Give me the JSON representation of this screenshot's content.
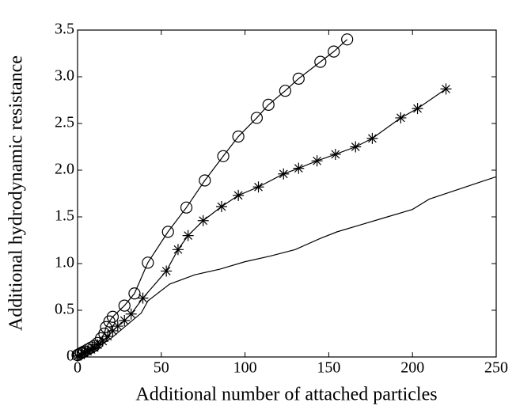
{
  "chart_data": {
    "type": "line",
    "xlabel": "Additional number of attached particles",
    "ylabel": "Additional hydrodynamic resistance",
    "xlim": [
      0,
      250
    ],
    "xticks": [
      0,
      50,
      100,
      150,
      200,
      250
    ],
    "ylim": [
      0,
      3.5
    ],
    "yticks": [
      0,
      0.5,
      {
        "value": 1,
        "label": "1.0"
      },
      1.5,
      {
        "value": 2,
        "label": "2.0"
      },
      2.5,
      {
        "value": 3,
        "label": "3.0"
      },
      3.5
    ],
    "grid": false,
    "series": [
      {
        "color": "#000000",
        "marker": "circle",
        "x": [
          0,
          1,
          2,
          3,
          4,
          6,
          8,
          10,
          12,
          14,
          16,
          17,
          19,
          21,
          28,
          34,
          42,
          54,
          65,
          76,
          87,
          96,
          107,
          114,
          124,
          132,
          145,
          153,
          161
        ],
        "values": [
          0.02,
          0.03,
          0.04,
          0.05,
          0.06,
          0.08,
          0.1,
          0.12,
          0.15,
          0.2,
          0.25,
          0.32,
          0.38,
          0.43,
          0.55,
          0.68,
          1.01,
          1.34,
          1.6,
          1.89,
          2.15,
          2.36,
          2.56,
          2.7,
          2.85,
          2.98,
          3.16,
          3.27,
          3.4
        ]
      },
      {
        "color": "#000000",
        "marker": "star",
        "x": [
          0,
          2,
          4,
          6,
          8,
          10,
          12,
          15,
          18,
          21,
          24,
          28,
          32,
          39,
          53,
          60,
          66,
          75,
          86,
          96,
          108,
          123,
          132,
          143,
          154,
          166,
          176,
          193,
          203,
          220
        ],
        "values": [
          0.01,
          0.02,
          0.04,
          0.06,
          0.08,
          0.1,
          0.13,
          0.17,
          0.22,
          0.28,
          0.33,
          0.39,
          0.46,
          0.63,
          0.92,
          1.15,
          1.3,
          1.46,
          1.61,
          1.73,
          1.82,
          1.96,
          2.02,
          2.1,
          2.17,
          2.25,
          2.34,
          2.56,
          2.66,
          2.87
        ]
      },
      {
        "color": "#000000",
        "marker": "none",
        "x": [
          0,
          10,
          20,
          30,
          38,
          42,
          55,
          70,
          85,
          100,
          115,
          130,
          145,
          155,
          170,
          185,
          200,
          210,
          225,
          240,
          250
        ],
        "values": [
          0,
          0.08,
          0.2,
          0.35,
          0.47,
          0.6,
          0.78,
          0.88,
          0.94,
          1.02,
          1.08,
          1.15,
          1.27,
          1.34,
          1.42,
          1.5,
          1.58,
          1.69,
          1.78,
          1.87,
          1.93
        ]
      }
    ]
  }
}
